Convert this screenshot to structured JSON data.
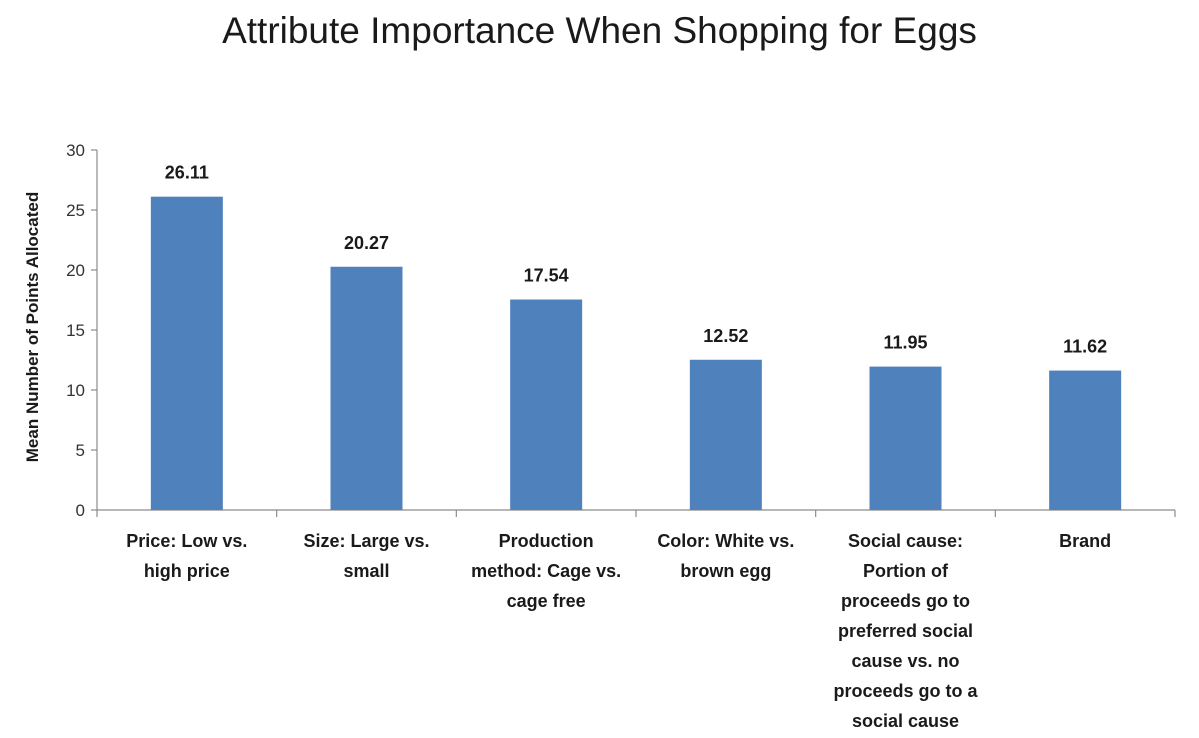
{
  "chart_data": {
    "type": "bar",
    "title": "Attribute Importance When Shopping for Eggs",
    "ylabel": "Mean Number of Points Allocated",
    "xlabel": "",
    "ylim": [
      0,
      30
    ],
    "yticks": [
      0,
      5,
      10,
      15,
      20,
      25,
      30
    ],
    "grid": false,
    "legend": "none",
    "bar_color": "#4f81bd",
    "categories": [
      [
        "Price: Low vs.",
        "high price"
      ],
      [
        "Size: Large vs.",
        "small"
      ],
      [
        "Production",
        "method: Cage vs.",
        "cage free"
      ],
      [
        "Color: White vs.",
        "brown egg"
      ],
      [
        "Social cause:",
        "Portion of",
        "proceeds go to",
        "preferred social",
        "cause vs. no",
        "proceeds go to a",
        "social cause"
      ],
      [
        "Brand"
      ]
    ],
    "values": [
      26.11,
      20.27,
      17.54,
      12.52,
      11.95,
      11.62
    ],
    "value_labels": [
      "26.11",
      "20.27",
      "17.54",
      "12.52",
      "11.95",
      "11.62"
    ]
  }
}
